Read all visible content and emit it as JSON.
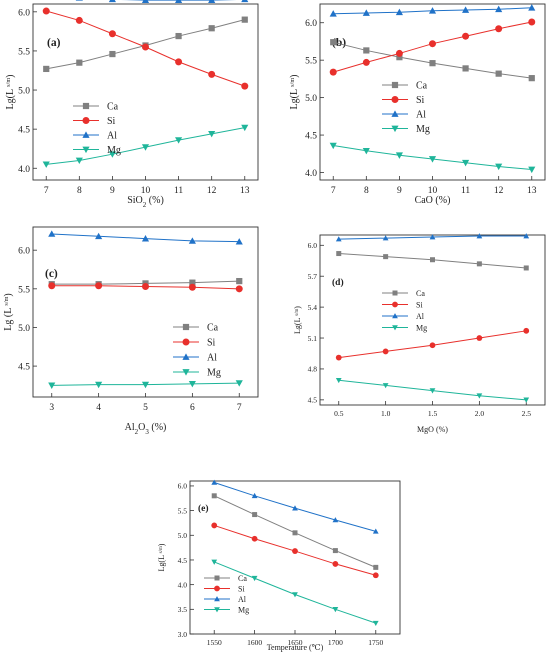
{
  "chart_data": [
    {
      "type": "line",
      "panel_label": "(a)",
      "xlabel": "SiO2 (%)",
      "ylabel": "Lg(L s/m)",
      "x": [
        7,
        8,
        9,
        10,
        11,
        12,
        13
      ],
      "xlim": [
        6.6,
        13.4
      ],
      "ylim": [
        3.85,
        6.1
      ],
      "xticks": [
        7,
        8,
        9,
        10,
        11,
        12,
        13
      ],
      "yticks": [
        4.0,
        4.5,
        5.0,
        5.5,
        6.0
      ],
      "ytick_labels": [
        "4.0",
        "4.5",
        "5.0",
        "5.5",
        "6.0"
      ],
      "legend_position": "center-left",
      "series": [
        {
          "name": "Ca",
          "values": [
            5.27,
            5.35,
            5.46,
            5.57,
            5.69,
            5.79,
            5.9
          ]
        },
        {
          "name": "Si",
          "values": [
            6.01,
            5.89,
            5.72,
            5.55,
            5.36,
            5.2,
            5.05
          ]
        },
        {
          "name": "Al",
          "values": [
            6.2,
            6.18,
            6.16,
            6.15,
            6.15,
            6.15,
            6.16
          ]
        },
        {
          "name": "Mg",
          "values": [
            4.05,
            4.1,
            4.18,
            4.27,
            4.36,
            4.44,
            4.52
          ]
        }
      ]
    },
    {
      "type": "line",
      "panel_label": "(b)",
      "xlabel": "CaO (%)",
      "ylabel": "Lg(L s/m)",
      "x": [
        7,
        8,
        9,
        10,
        11,
        12,
        13
      ],
      "xlim": [
        6.6,
        13.4
      ],
      "ylim": [
        3.9,
        6.25
      ],
      "xticks": [
        7,
        8,
        9,
        10,
        11,
        12,
        13
      ],
      "yticks": [
        4.0,
        4.5,
        5.0,
        5.5,
        6.0
      ],
      "ytick_labels": [
        "4.0",
        "4.5",
        "5.0",
        "5.5",
        "6.0"
      ],
      "legend_position": "center-right",
      "series": [
        {
          "name": "Ca",
          "values": [
            5.74,
            5.63,
            5.54,
            5.46,
            5.39,
            5.32,
            5.26
          ]
        },
        {
          "name": "Si",
          "values": [
            5.34,
            5.47,
            5.59,
            5.72,
            5.82,
            5.92,
            6.01
          ]
        },
        {
          "name": "Al",
          "values": [
            6.12,
            6.13,
            6.14,
            6.16,
            6.17,
            6.18,
            6.2
          ]
        },
        {
          "name": "Mg",
          "values": [
            4.36,
            4.29,
            4.23,
            4.18,
            4.13,
            4.08,
            4.04
          ]
        }
      ]
    },
    {
      "type": "line",
      "panel_label": "(c)",
      "xlabel": "Al2O3 (%)",
      "ylabel": "Lg (L s/m)",
      "x": [
        3,
        4,
        5,
        6,
        7
      ],
      "xlim": [
        2.6,
        7.4
      ],
      "ylim": [
        4.1,
        6.3
      ],
      "xticks": [
        3,
        4,
        5,
        6,
        7
      ],
      "yticks": [
        4.5,
        5.0,
        5.5,
        6.0
      ],
      "ytick_labels": [
        "4.5",
        "5.0",
        "5.5",
        "6.0"
      ],
      "legend_position": "center-right",
      "series": [
        {
          "name": "Ca",
          "values": [
            5.56,
            5.56,
            5.57,
            5.58,
            5.6
          ]
        },
        {
          "name": "Si",
          "values": [
            5.54,
            5.54,
            5.53,
            5.52,
            5.5
          ]
        },
        {
          "name": "Al",
          "values": [
            6.21,
            6.18,
            6.15,
            6.12,
            6.11
          ]
        },
        {
          "name": "Mg",
          "values": [
            4.25,
            4.26,
            4.26,
            4.27,
            4.28
          ]
        }
      ]
    },
    {
      "type": "line",
      "panel_label": "(d)",
      "xlabel": "MgO (%)",
      "ylabel": "Lg(L s/m)",
      "x": [
        0.5,
        1.0,
        1.5,
        2.0,
        2.5
      ],
      "xlim": [
        0.3,
        2.7
      ],
      "ylim": [
        4.45,
        6.1
      ],
      "xticks": [
        0.5,
        1.0,
        1.5,
        2.0,
        2.5
      ],
      "xtick_labels": [
        "0.5",
        "1.0",
        "1.5",
        "2.0",
        "2.5"
      ],
      "yticks": [
        4.5,
        4.8,
        5.1,
        5.4,
        5.7,
        6.0
      ],
      "ytick_labels": [
        "4.5",
        "4.8",
        "5.1",
        "5.4",
        "5.7",
        "6.0"
      ],
      "legend_position": "center-left",
      "series": [
        {
          "name": "Ca",
          "values": [
            5.92,
            5.89,
            5.86,
            5.82,
            5.78
          ]
        },
        {
          "name": "Si",
          "values": [
            4.91,
            4.97,
            5.03,
            5.1,
            5.17
          ]
        },
        {
          "name": "Al",
          "values": [
            6.06,
            6.07,
            6.08,
            6.09,
            6.09
          ]
        },
        {
          "name": "Mg",
          "values": [
            4.69,
            4.64,
            4.59,
            4.54,
            4.5
          ]
        }
      ]
    },
    {
      "type": "line",
      "panel_label": "(e)",
      "xlabel": "Temperature (℃)",
      "ylabel": "Lg(L s/m)",
      "x": [
        1550,
        1600,
        1650,
        1700,
        1750
      ],
      "xlim": [
        1520,
        1780
      ],
      "ylim": [
        3.0,
        6.1
      ],
      "xticks": [
        1550,
        1600,
        1650,
        1700,
        1750
      ],
      "yticks": [
        3.0,
        3.5,
        4.0,
        4.5,
        5.0,
        5.5,
        6.0
      ],
      "ytick_labels": [
        "3.0",
        "3.5",
        "4.0",
        "4.5",
        "5.0",
        "5.5",
        "6.0"
      ],
      "legend_position": "bottom-left",
      "series": [
        {
          "name": "Ca",
          "values": [
            5.8,
            5.42,
            5.05,
            4.69,
            4.35
          ]
        },
        {
          "name": "Si",
          "values": [
            5.2,
            4.93,
            4.68,
            4.42,
            4.19
          ]
        },
        {
          "name": "Al",
          "values": [
            6.07,
            5.8,
            5.55,
            5.31,
            5.08
          ]
        },
        {
          "name": "Mg",
          "values": [
            4.46,
            4.13,
            3.8,
            3.5,
            3.22
          ]
        }
      ]
    }
  ],
  "styles": {
    "Ca": {
      "color": "#808080",
      "marker": "square"
    },
    "Si": {
      "color": "#e8302c",
      "marker": "circle"
    },
    "Al": {
      "color": "#2072c8",
      "marker": "triangle-up"
    },
    "Mg": {
      "color": "#1fb59a",
      "marker": "triangle-down"
    }
  }
}
